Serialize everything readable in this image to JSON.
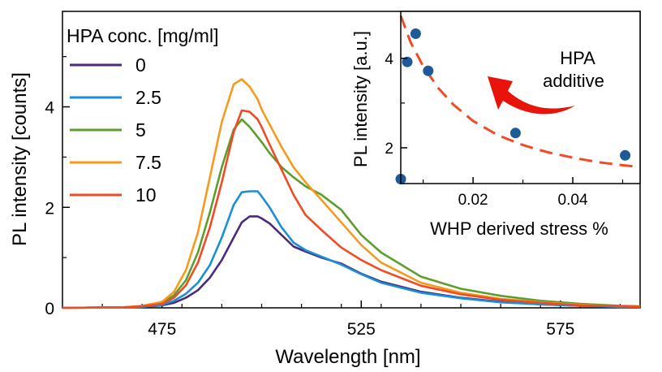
{
  "chart_data": [
    {
      "type": "line",
      "xlabel": "Wavelength [nm]",
      "ylabel": "PL intensity [counts]",
      "xlim": [
        450,
        595
      ],
      "ylim": [
        0,
        5.9
      ],
      "xticks": [
        475,
        525,
        575
      ],
      "yticks": [
        0,
        2,
        4
      ],
      "legend_title": "HPA conc. [mg/ml]",
      "legend_position": "top-left",
      "series": [
        {
          "name": "0",
          "color": "#4b2a7b",
          "x": [
            450,
            465,
            470,
            475,
            478,
            481,
            484,
            487,
            490,
            493,
            495,
            497,
            499,
            500,
            502,
            505,
            508,
            511,
            515,
            520,
            525,
            530,
            540,
            550,
            560,
            570,
            580,
            590,
            595
          ],
          "y": [
            0.0,
            0.01,
            0.02,
            0.05,
            0.1,
            0.2,
            0.35,
            0.6,
            0.95,
            1.4,
            1.7,
            1.82,
            1.82,
            1.78,
            1.68,
            1.45,
            1.22,
            1.12,
            1.0,
            0.88,
            0.68,
            0.52,
            0.32,
            0.2,
            0.12,
            0.07,
            0.04,
            0.02,
            0.02
          ]
        },
        {
          "name": "2.5",
          "color": "#1a8fd6",
          "x": [
            450,
            465,
            470,
            475,
            478,
            481,
            484,
            487,
            490,
            493,
            495,
            497,
            499,
            500,
            502,
            505,
            508,
            511,
            515,
            520,
            525,
            530,
            540,
            550,
            560,
            570,
            580,
            590,
            595
          ],
          "y": [
            0.0,
            0.01,
            0.02,
            0.06,
            0.14,
            0.28,
            0.5,
            0.85,
            1.4,
            2.05,
            2.3,
            2.32,
            2.32,
            2.22,
            2.0,
            1.6,
            1.3,
            1.15,
            1.02,
            0.86,
            0.67,
            0.5,
            0.3,
            0.19,
            0.11,
            0.07,
            0.04,
            0.02,
            0.02
          ]
        },
        {
          "name": "5",
          "color": "#5c9e2e",
          "x": [
            450,
            465,
            470,
            475,
            478,
            481,
            484,
            487,
            490,
            493,
            495,
            497,
            499,
            500,
            502,
            505,
            508,
            511,
            515,
            520,
            525,
            530,
            540,
            550,
            560,
            570,
            580,
            590,
            595
          ],
          "y": [
            0.0,
            0.01,
            0.03,
            0.1,
            0.25,
            0.55,
            1.1,
            1.9,
            2.8,
            3.55,
            3.75,
            3.6,
            3.4,
            3.3,
            3.08,
            2.8,
            2.6,
            2.42,
            2.25,
            1.95,
            1.45,
            1.1,
            0.62,
            0.38,
            0.24,
            0.14,
            0.08,
            0.04,
            0.03
          ]
        },
        {
          "name": "7.5",
          "color": "#f59a1d",
          "x": [
            450,
            465,
            470,
            475,
            478,
            481,
            484,
            487,
            490,
            493,
            495,
            497,
            499,
            500,
            502,
            505,
            508,
            511,
            515,
            520,
            525,
            530,
            540,
            550,
            560,
            570,
            580,
            590,
            595
          ],
          "y": [
            0.0,
            0.01,
            0.04,
            0.12,
            0.32,
            0.75,
            1.5,
            2.6,
            3.7,
            4.45,
            4.55,
            4.4,
            4.15,
            3.95,
            3.65,
            3.2,
            2.8,
            2.5,
            2.15,
            1.7,
            1.25,
            0.9,
            0.5,
            0.3,
            0.18,
            0.11,
            0.06,
            0.03,
            0.02
          ]
        },
        {
          "name": "10",
          "color": "#f04b24",
          "x": [
            450,
            465,
            470,
            475,
            478,
            481,
            484,
            487,
            490,
            493,
            495,
            497,
            499,
            500,
            502,
            505,
            508,
            511,
            515,
            520,
            525,
            530,
            540,
            550,
            560,
            570,
            580,
            590,
            595
          ],
          "y": [
            0.0,
            0.01,
            0.03,
            0.08,
            0.2,
            0.45,
            0.9,
            1.6,
            2.5,
            3.5,
            3.93,
            3.9,
            3.75,
            3.6,
            3.25,
            2.75,
            2.25,
            1.85,
            1.55,
            1.2,
            0.95,
            0.75,
            0.44,
            0.27,
            0.16,
            0.1,
            0.05,
            0.03,
            0.02
          ]
        }
      ]
    },
    {
      "type": "scatter",
      "xlabel": "WHP derived stress %",
      "ylabel": "PL intensity [a.u.]",
      "xlim": [
        0.0055,
        0.0535
      ],
      "ylim": [
        1.2,
        5.05
      ],
      "xticks": [
        0.02,
        0.04
      ],
      "yticks": [
        2,
        4
      ],
      "annotation": {
        "text_line1": "HPA",
        "text_line2": "additive",
        "arrow_color": "#e8130b"
      },
      "series": [
        {
          "color": "#1f5a98",
          "x": [
            0.0055,
            0.0068,
            0.0085,
            0.011,
            0.0285,
            0.0505
          ],
          "y": [
            1.3,
            3.92,
            4.55,
            3.72,
            2.33,
            1.83
          ]
        }
      ],
      "fit": {
        "color": "#f04b24",
        "style": "dashed",
        "x": [
          0.0055,
          0.0075,
          0.01,
          0.013,
          0.016,
          0.02,
          0.025,
          0.03,
          0.035,
          0.04,
          0.045,
          0.05,
          0.0535
        ],
        "y": [
          4.95,
          4.35,
          3.82,
          3.34,
          2.97,
          2.6,
          2.28,
          2.06,
          1.9,
          1.78,
          1.68,
          1.61,
          1.57
        ]
      }
    }
  ]
}
